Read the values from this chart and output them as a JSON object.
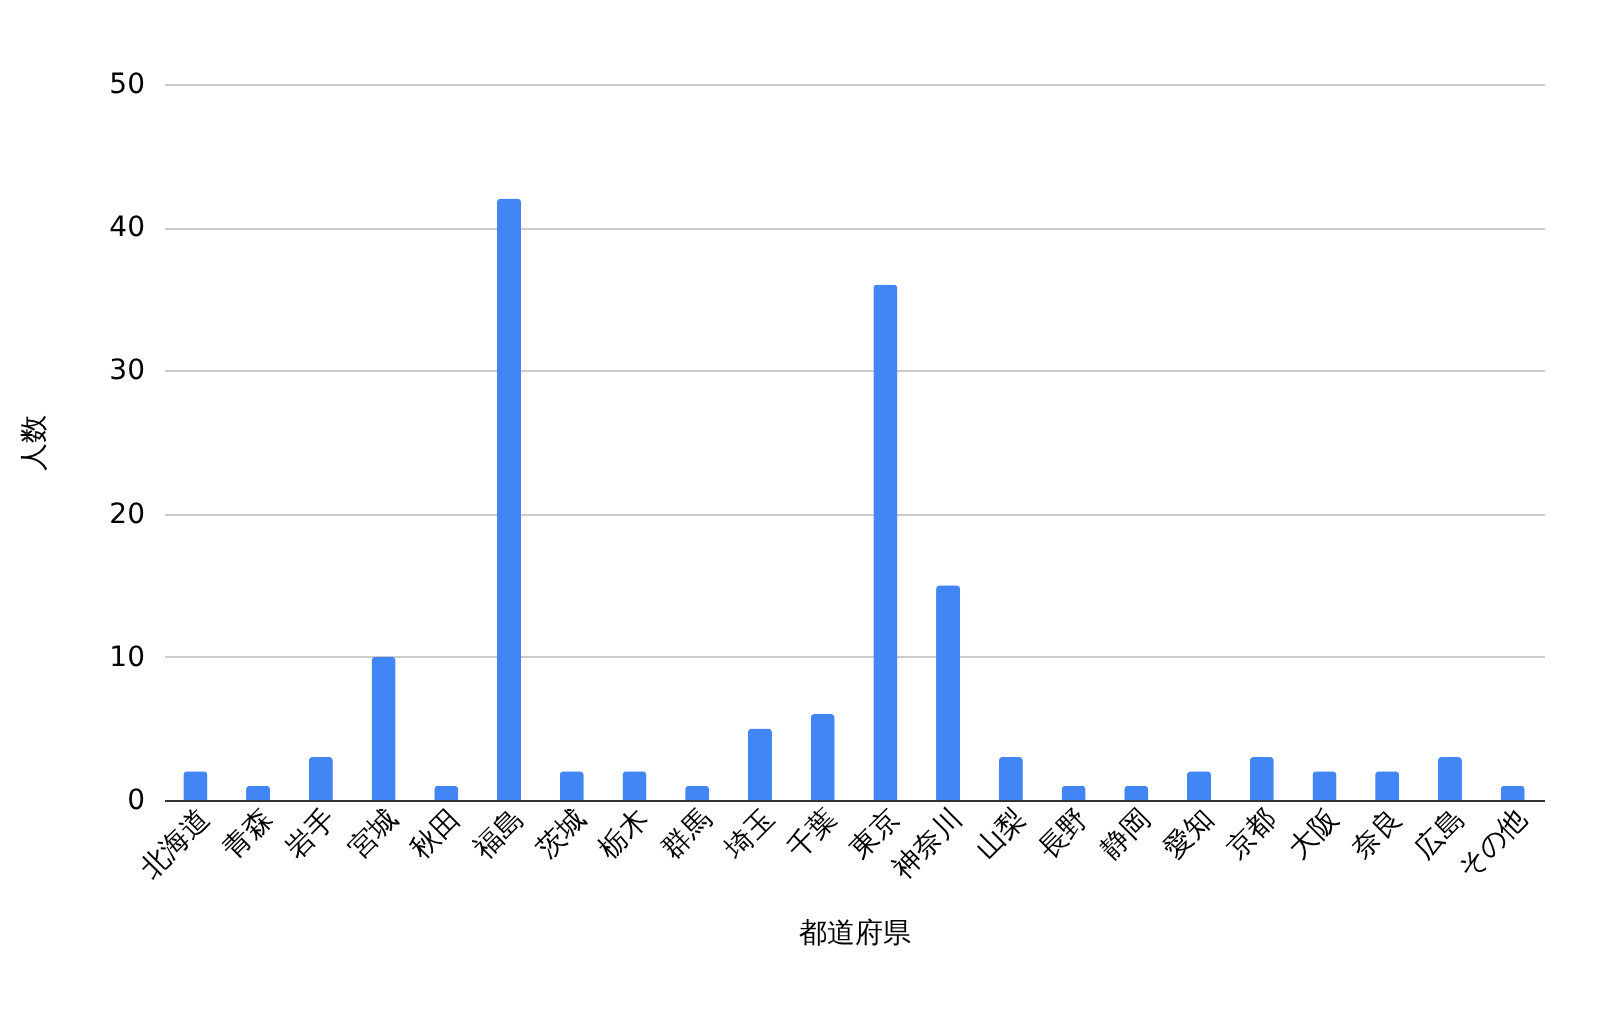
{
  "chart_data": {
    "type": "bar",
    "xlabel": "都道府県",
    "ylabel": "人数",
    "categories": [
      "北海道",
      "青森",
      "岩手",
      "宮城",
      "秋田",
      "福島",
      "茨城",
      "栃木",
      "群馬",
      "埼玉",
      "千葉",
      "東京",
      "神奈川",
      "山梨",
      "長野",
      "静岡",
      "愛知",
      "京都",
      "大阪",
      "奈良",
      "広島",
      "その他"
    ],
    "values": [
      2,
      1,
      3,
      10,
      1,
      42,
      2,
      2,
      1,
      5,
      6,
      36,
      15,
      3,
      1,
      1,
      2,
      3,
      2,
      2,
      3,
      1
    ],
    "color": "#4285f4",
    "ylim": [
      0,
      50
    ],
    "yticks": [
      0,
      10,
      20,
      30,
      40,
      50
    ],
    "grid": "y"
  }
}
